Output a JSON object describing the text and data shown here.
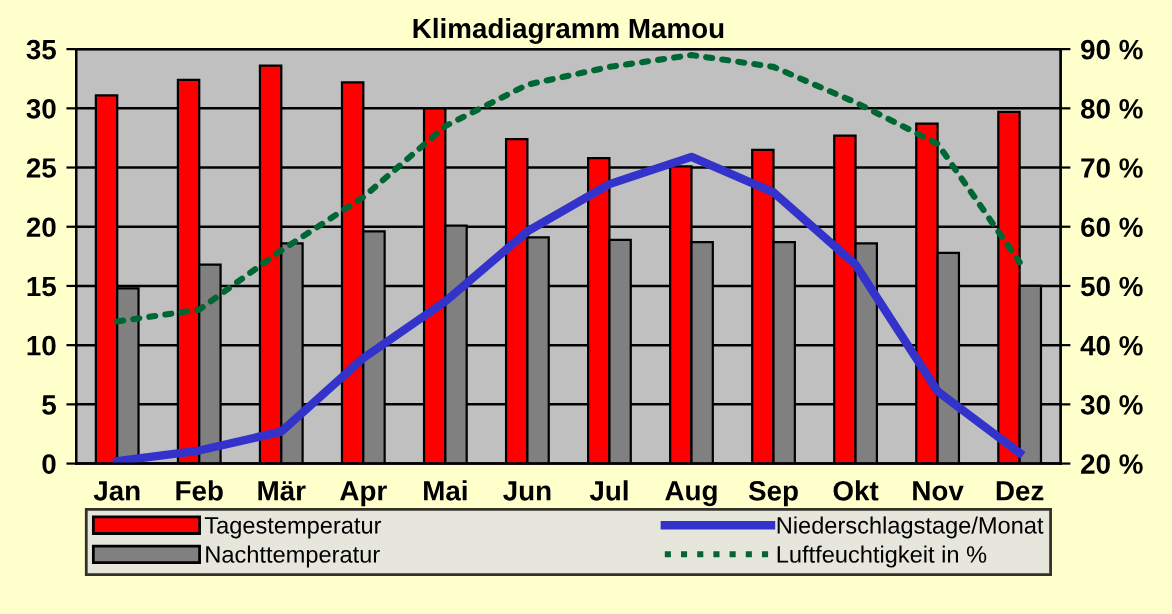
{
  "chart_data": {
    "type": "bar",
    "title": "Klimadiagramm Mamou",
    "categories": [
      "Jan",
      "Feb",
      "Mär",
      "Apr",
      "Mai",
      "Jun",
      "Jul",
      "Aug",
      "Sep",
      "Okt",
      "Nov",
      "Dez"
    ],
    "series": [
      {
        "name": "Tagestemperatur",
        "color": "#ff0000",
        "values": [
          31.1,
          32.4,
          33.6,
          32.2,
          30.0,
          27.4,
          25.8,
          25.1,
          26.5,
          27.7,
          28.7,
          29.7
        ]
      },
      {
        "name": "Nachttemperatur",
        "color": "#808080",
        "values": [
          14.8,
          16.8,
          18.6,
          19.6,
          20.1,
          19.1,
          18.9,
          18.7,
          18.7,
          18.6,
          17.8,
          15.0
        ]
      },
      {
        "name": "Niederschlagstage/Monat",
        "color": "#3333cc",
        "type": "line",
        "line_style": "solid",
        "values": [
          0.2,
          1.1,
          2.7,
          8.9,
          13.7,
          19.6,
          23.6,
          25.9,
          22.9,
          16.8,
          6.1,
          0.9
        ]
      },
      {
        "name": "Luftfeuchtigkeit in %",
        "color": "#006633",
        "type": "line",
        "axis": "y2",
        "line_style": "dotted",
        "values": [
          44,
          46,
          56,
          65,
          77,
          84,
          87,
          89,
          87,
          81,
          74,
          54
        ]
      }
    ],
    "ylim": [
      0,
      35
    ],
    "yticks": [
      0,
      5,
      10,
      15,
      20,
      25,
      30,
      35
    ],
    "y2lim": [
      20,
      90
    ],
    "y2ticks": [
      {
        "value": 20,
        "label": "20 %"
      },
      {
        "value": 30,
        "label": "30 %"
      },
      {
        "value": 40,
        "label": "40 %"
      },
      {
        "value": 50,
        "label": "50 %"
      },
      {
        "value": 60,
        "label": "60 %"
      },
      {
        "value": 70,
        "label": "70 %"
      },
      {
        "value": 80,
        "label": "80 %"
      },
      {
        "value": 90,
        "label": "90 %"
      }
    ],
    "grid": "y",
    "legend": "bottom",
    "marker": "none"
  }
}
